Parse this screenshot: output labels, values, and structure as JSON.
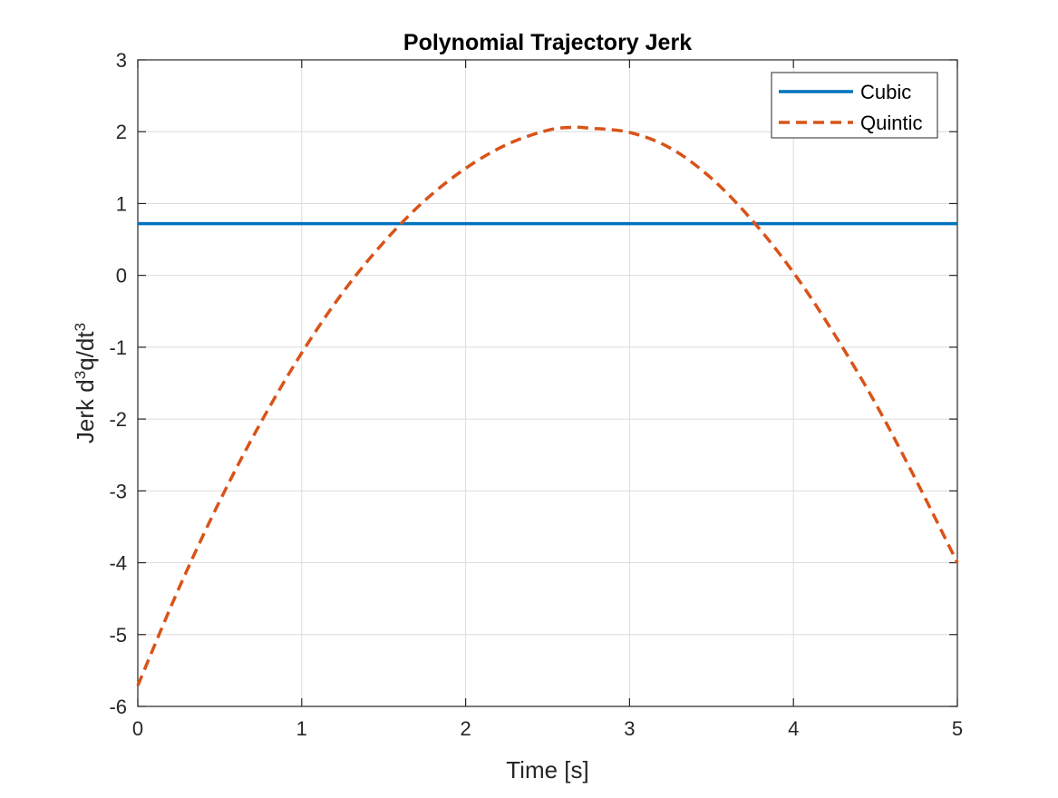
{
  "chart_data": {
    "type": "line",
    "title": "Polynomial Trajectory Jerk",
    "xlabel": "Time [s]",
    "ylabel_parts": [
      "Jerk d",
      "3",
      "q/dt",
      "3"
    ],
    "xlim": [
      0,
      5
    ],
    "ylim": [
      -6,
      3
    ],
    "xticks": [
      0,
      1,
      2,
      3,
      4,
      5
    ],
    "yticks": [
      -6,
      -5,
      -4,
      -3,
      -2,
      -1,
      0,
      1,
      2,
      3
    ],
    "xtick_labels": [
      "0",
      "1",
      "2",
      "3",
      "4",
      "5"
    ],
    "ytick_labels": [
      "-6",
      "-5",
      "-4",
      "-3",
      "-2",
      "-1",
      "0",
      "1",
      "2",
      "3"
    ],
    "grid": true,
    "legend_position": "top-right",
    "series": [
      {
        "name": "Cubic",
        "style": "solid",
        "color": "#0072BD",
        "x": [
          0,
          5
        ],
        "y": [
          0.72,
          0.72
        ]
      },
      {
        "name": "Quintic",
        "style": "dashed",
        "color": "#D95319",
        "x": [
          0,
          0.25,
          0.5,
          0.75,
          1.0,
          1.25,
          1.5,
          1.75,
          2.0,
          2.25,
          2.5,
          2.65,
          2.75,
          3.0,
          3.25,
          3.5,
          3.75,
          4.0,
          4.25,
          4.5,
          4.75,
          5.0
        ],
        "y": [
          -5.71,
          -4.36,
          -3.14,
          -2.05,
          -1.08,
          -0.24,
          0.46,
          1.04,
          1.49,
          1.82,
          2.02,
          2.06,
          2.05,
          1.99,
          1.77,
          1.35,
          0.76,
          0.04,
          -0.82,
          -1.78,
          -2.86,
          -4.0
        ]
      }
    ]
  }
}
